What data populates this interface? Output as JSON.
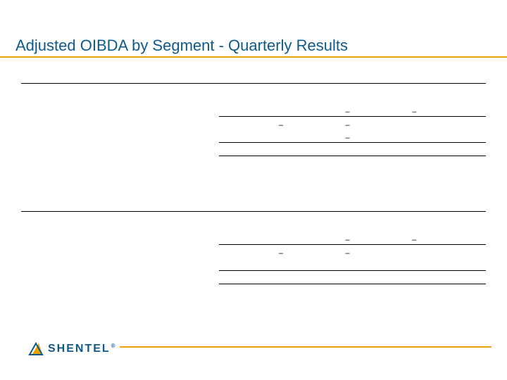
{
  "colors": {
    "title": "#0e5a8a",
    "accent_rule": "#e9a400",
    "line": "#000000",
    "logo_text": "#0e5a8a",
    "logo_tri_stroke": "#0e5a8a",
    "logo_tri_fill": "#e9a400"
  },
  "title": "Adjusted OIBDA by Segment - Quarterly Results",
  "logo": {
    "text": "SHENTEL",
    "reg": "®"
  },
  "tables": {
    "top": {
      "rows": [
        {
          "cells": [
            {
              "cls": "col-label u",
              "v": ""
            },
            {
              "cls": "col-val u",
              "v": ""
            },
            {
              "cls": "col-val u",
              "v": ""
            },
            {
              "cls": "col-val u",
              "v": ""
            },
            {
              "cls": "col-val u",
              "v": ""
            }
          ]
        },
        {
          "gap": true
        },
        {
          "cells": [
            {
              "cls": "col-label",
              "v": ""
            },
            {
              "cls": "col-val u",
              "v": ""
            },
            {
              "cls": "col-val u",
              "v": "–"
            },
            {
              "cls": "col-val u",
              "v": "–"
            },
            {
              "cls": "col-val u",
              "v": ""
            }
          ]
        },
        {
          "cells": [
            {
              "cls": "col-label",
              "v": ""
            },
            {
              "cls": "col-val",
              "v": "–"
            },
            {
              "cls": "col-val",
              "v": "–"
            },
            {
              "cls": "col-val",
              "v": ""
            },
            {
              "cls": "col-val",
              "v": ""
            }
          ]
        },
        {
          "cells": [
            {
              "cls": "col-label",
              "v": ""
            },
            {
              "cls": "col-val u",
              "v": ""
            },
            {
              "cls": "col-val u",
              "v": "–"
            },
            {
              "cls": "col-val u",
              "v": ""
            },
            {
              "cls": "col-val u",
              "v": ""
            }
          ]
        },
        {
          "cells": [
            {
              "cls": "col-label",
              "v": ""
            },
            {
              "cls": "col-val u",
              "v": ""
            },
            {
              "cls": "col-val u",
              "v": ""
            },
            {
              "cls": "col-val u",
              "v": ""
            },
            {
              "cls": "col-val u",
              "v": ""
            }
          ]
        }
      ]
    },
    "bottom": {
      "rows": [
        {
          "cells": [
            {
              "cls": "col-label u",
              "v": ""
            },
            {
              "cls": "col-val u",
              "v": ""
            },
            {
              "cls": "col-val u",
              "v": ""
            },
            {
              "cls": "col-val u",
              "v": ""
            },
            {
              "cls": "col-val u",
              "v": ""
            }
          ]
        },
        {
          "gap": true
        },
        {
          "cells": [
            {
              "cls": "col-label",
              "v": ""
            },
            {
              "cls": "col-val u",
              "v": ""
            },
            {
              "cls": "col-val u",
              "v": "–"
            },
            {
              "cls": "col-val u",
              "v": "–"
            },
            {
              "cls": "col-val u",
              "v": ""
            }
          ]
        },
        {
          "cells": [
            {
              "cls": "col-label",
              "v": ""
            },
            {
              "cls": "col-val",
              "v": "–"
            },
            {
              "cls": "col-val",
              "v": "–"
            },
            {
              "cls": "col-val",
              "v": ""
            },
            {
              "cls": "col-val",
              "v": ""
            }
          ]
        },
        {
          "cells": [
            {
              "cls": "col-label",
              "v": ""
            },
            {
              "cls": "col-val u",
              "v": ""
            },
            {
              "cls": "col-val u",
              "v": ""
            },
            {
              "cls": "col-val u",
              "v": ""
            },
            {
              "cls": "col-val u",
              "v": ""
            }
          ]
        },
        {
          "cells": [
            {
              "cls": "col-label",
              "v": ""
            },
            {
              "cls": "col-val u",
              "v": ""
            },
            {
              "cls": "col-val u",
              "v": ""
            },
            {
              "cls": "col-val u",
              "v": ""
            },
            {
              "cls": "col-val u",
              "v": ""
            }
          ]
        }
      ]
    }
  }
}
